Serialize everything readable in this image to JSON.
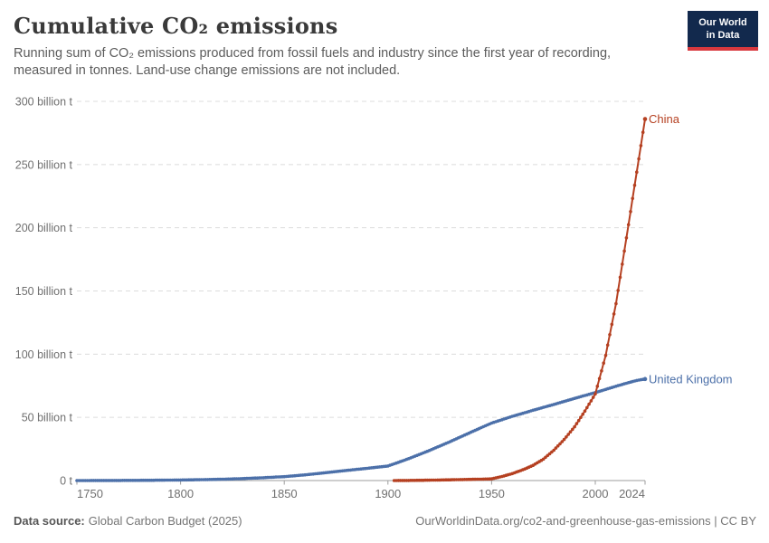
{
  "logo": {
    "line1": "Our World",
    "line2": "in Data"
  },
  "header": {
    "title": "Cumulative CO₂ emissions",
    "subtitle": "Running sum of CO₂ emissions produced from fossil fuels and industry since the first year of recording, measured in tonnes. Land-use change emissions are not included."
  },
  "footer": {
    "source_label": "Data source:",
    "source_value": "Global Carbon Budget (2025)",
    "credit": "OurWorldinData.org/co2-and-greenhouse-gas-emissions | CC BY"
  },
  "colors": {
    "title": "#3a3a3a",
    "subtitle": "#5c5c5c",
    "tick_text": "#707070",
    "grid": "#dcdcdc",
    "axis": "#9e9e9e",
    "china": "#B54021",
    "united_kingdom": "#4C70A9",
    "logo_bg": "#12294d",
    "logo_red": "#d8383e"
  },
  "chart_data": {
    "type": "line",
    "title": "Cumulative CO₂ emissions",
    "unit": "billion tonnes CO₂",
    "xlim": [
      1750,
      2024
    ],
    "ylim": [
      0,
      300
    ],
    "grid": "horizontal-dashed",
    "legend_position": "end-of-line labels",
    "x_ticks": [
      {
        "value": 1750,
        "label": "1750"
      },
      {
        "value": 1800,
        "label": "1800"
      },
      {
        "value": 1850,
        "label": "1850"
      },
      {
        "value": 1900,
        "label": "1900"
      },
      {
        "value": 1950,
        "label": "1950"
      },
      {
        "value": 2000,
        "label": "2000"
      },
      {
        "value": 2024,
        "label": "2024"
      }
    ],
    "y_ticks": [
      {
        "value": 0,
        "label": "0 t"
      },
      {
        "value": 50,
        "label": "50 billion t"
      },
      {
        "value": 100,
        "label": "100 billion t"
      },
      {
        "value": 150,
        "label": "150 billion t"
      },
      {
        "value": 200,
        "label": "200 billion t"
      },
      {
        "value": 250,
        "label": "250 billion t"
      },
      {
        "value": 300,
        "label": "300 billion t"
      }
    ],
    "series": [
      {
        "name": "United Kingdom",
        "color": "#4C70A9",
        "line_width": 2.4,
        "markers": true,
        "points": [
          [
            1750,
            0.01
          ],
          [
            1760,
            0.05
          ],
          [
            1770,
            0.1
          ],
          [
            1780,
            0.17
          ],
          [
            1790,
            0.28
          ],
          [
            1800,
            0.45
          ],
          [
            1810,
            0.7
          ],
          [
            1820,
            1.05
          ],
          [
            1830,
            1.55
          ],
          [
            1840,
            2.25
          ],
          [
            1850,
            3.1
          ],
          [
            1860,
            4.5
          ],
          [
            1870,
            6.2
          ],
          [
            1880,
            8.0
          ],
          [
            1890,
            9.7
          ],
          [
            1900,
            11.5
          ],
          [
            1910,
            17.3
          ],
          [
            1920,
            23.8
          ],
          [
            1930,
            30.8
          ],
          [
            1940,
            38.2
          ],
          [
            1950,
            45.5
          ],
          [
            1960,
            50.8
          ],
          [
            1970,
            55.6
          ],
          [
            1980,
            60.2
          ],
          [
            1990,
            65.0
          ],
          [
            2000,
            69.6
          ],
          [
            2005,
            72.1
          ],
          [
            2010,
            74.6
          ],
          [
            2015,
            77.0
          ],
          [
            2020,
            79.2
          ],
          [
            2024,
            80.3
          ]
        ]
      },
      {
        "name": "China",
        "color": "#B54021",
        "line_width": 2.0,
        "markers": true,
        "points": [
          [
            1903,
            0.02
          ],
          [
            1910,
            0.1
          ],
          [
            1920,
            0.3
          ],
          [
            1930,
            0.6
          ],
          [
            1940,
            0.95
          ],
          [
            1945,
            1.1
          ],
          [
            1950,
            1.35
          ],
          [
            1955,
            3.2
          ],
          [
            1960,
            5.5
          ],
          [
            1965,
            8.5
          ],
          [
            1970,
            12.0
          ],
          [
            1975,
            17.0
          ],
          [
            1980,
            24.0
          ],
          [
            1985,
            32.5
          ],
          [
            1990,
            42.5
          ],
          [
            1995,
            55.0
          ],
          [
            2000,
            68.5
          ],
          [
            2005,
            99.0
          ],
          [
            2010,
            140.0
          ],
          [
            2015,
            192.0
          ],
          [
            2020,
            244.0
          ],
          [
            2024,
            286.0
          ]
        ]
      }
    ]
  }
}
